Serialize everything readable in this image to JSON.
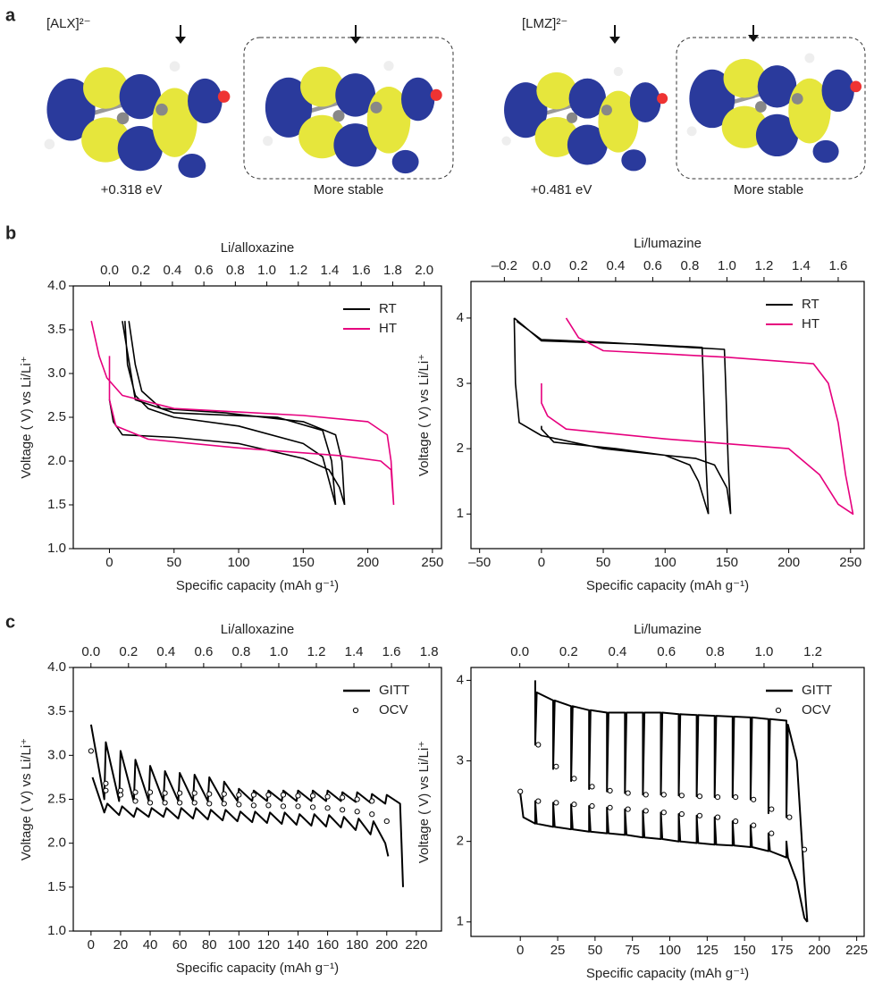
{
  "panel_labels": {
    "a": "a",
    "b": "b",
    "c": "c"
  },
  "panel_a": {
    "molecules": [
      {
        "name": "[ALX]²⁻",
        "energy": "+0.318 eV",
        "stable": "More stable"
      },
      {
        "name": "[LMZ]²⁻",
        "energy": "+0.481 eV",
        "stable": "More stable"
      }
    ]
  },
  "chart_data": [
    {
      "type": "line",
      "x2_label": "Li/alloxazine",
      "x_label": "Specific capacity (mAh g⁻¹)",
      "y_label": "Voltage ( V) vs Li/Li⁺",
      "xlim": [
        -28,
        257
      ],
      "xticks": [
        0,
        50,
        100,
        150,
        200,
        250
      ],
      "x2lim": [
        -0.23,
        2.11
      ],
      "x2ticks": [
        {
          "value": 0,
          "label": "0.0"
        },
        0.2,
        0.4,
        0.6,
        0.8,
        {
          "value": 1,
          "label": "1.0"
        },
        1.2,
        1.4,
        1.6,
        1.8,
        {
          "value": 2,
          "label": "2.0"
        }
      ],
      "ylim": [
        1,
        4
      ],
      "yticks": [
        {
          "value": 1,
          "label": "1.0"
        },
        1.5,
        {
          "value": 2,
          "label": "2.0"
        },
        2.5,
        {
          "value": 3,
          "label": "3.0"
        },
        3.5,
        {
          "value": 4,
          "label": "4.0"
        }
      ],
      "legend": "upper right",
      "series": [
        {
          "name": "RT",
          "color": "#000000",
          "mode": "lines",
          "x": [
            0,
            3,
            10,
            50,
            100,
            150,
            170,
            178,
            182,
            null,
            182,
            180,
            175,
            150,
            90,
            40,
            25,
            20,
            15,
            null,
            12,
            14,
            20,
            30,
            50,
            100,
            150,
            165,
            175,
            null,
            175,
            172,
            165,
            130,
            50,
            20,
            10
          ],
          "values": [
            2.7,
            2.45,
            2.3,
            2.27,
            2.2,
            2.03,
            1.9,
            1.7,
            1.5,
            null,
            1.5,
            2.0,
            2.3,
            2.45,
            2.55,
            2.6,
            2.8,
            3.1,
            3.6,
            null,
            3.6,
            3.1,
            2.75,
            2.6,
            2.5,
            2.4,
            2.2,
            2.05,
            1.5,
            null,
            1.5,
            2.0,
            2.35,
            2.5,
            2.55,
            2.7,
            3.6
          ]
        },
        {
          "name": "HT",
          "color": "#e6007e",
          "mode": "lines",
          "x": [
            -14,
            -8,
            -2,
            10,
            50,
            100,
            150,
            200,
            215,
            218,
            220,
            null,
            220,
            218,
            210,
            180,
            100,
            30,
            5,
            0,
            0
          ],
          "values": [
            3.6,
            3.2,
            2.95,
            2.75,
            2.6,
            2.56,
            2.52,
            2.45,
            2.3,
            2.0,
            1.5,
            null,
            1.5,
            1.9,
            2.0,
            2.06,
            2.15,
            2.25,
            2.4,
            2.7,
            3.2
          ]
        }
      ]
    },
    {
      "type": "line",
      "x2_label": "Li/lumazine",
      "x_label": "Specific capacity (mAh g⁻¹)",
      "y_label": "Voltage ( V) vs Li/Li⁺",
      "xlim": [
        -57,
        261
      ],
      "xticks": [
        {
          "value": -50,
          "label": "–50"
        },
        0,
        50,
        100,
        150,
        200,
        250
      ],
      "x2lim": [
        -0.38,
        1.74
      ],
      "x2ticks": [
        {
          "value": -0.2,
          "label": "–0.2"
        },
        {
          "value": 0,
          "label": "0.0"
        },
        0.2,
        0.4,
        0.6,
        0.8,
        {
          "value": 1,
          "label": "1.0"
        },
        1.2,
        1.4,
        1.6
      ],
      "ylim": [
        0.47,
        4.56
      ],
      "yticks": [
        1,
        2,
        3,
        4
      ],
      "legend": "upper right",
      "series": [
        {
          "name": "RT",
          "color": "#000000",
          "mode": "lines",
          "x": [
            0,
            0,
            10,
            60,
            100,
            125,
            140,
            150,
            153,
            null,
            153,
            151,
            149,
            148,
            120,
            50,
            0,
            -20,
            null,
            -22,
            -21,
            -18,
            0,
            50,
            100,
            120,
            127,
            135,
            null,
            135,
            133,
            131,
            130,
            80,
            0,
            -22
          ],
          "values": [
            2.35,
            2.3,
            2.1,
            2.0,
            1.9,
            1.85,
            1.75,
            1.4,
            1.0,
            null,
            1.0,
            1.8,
            3.0,
            3.52,
            3.55,
            3.63,
            3.67,
            3.95,
            null,
            4.0,
            3.0,
            2.4,
            2.2,
            2.0,
            1.9,
            1.75,
            1.5,
            1.0,
            null,
            1.0,
            1.8,
            3.0,
            3.55,
            3.6,
            3.65,
            4.0
          ]
        },
        {
          "name": "HT",
          "color": "#e6007e",
          "mode": "lines",
          "x": [
            0,
            0,
            5,
            20,
            100,
            200,
            225,
            240,
            252,
            250,
            246,
            240,
            232,
            220,
            150,
            100,
            50,
            30,
            20
          ],
          "values": [
            3.0,
            2.7,
            2.5,
            2.3,
            2.15,
            2.0,
            1.6,
            1.15,
            1.0,
            1.2,
            1.6,
            2.4,
            3.0,
            3.3,
            3.4,
            3.45,
            3.5,
            3.7,
            4.0
          ]
        }
      ]
    },
    {
      "type": "line",
      "x2_label": "Li/alloxazine",
      "x_label": "Specific capacity (mAh g⁻¹)",
      "y_label": "Voltage ( V) vs Li/Li⁺",
      "xlim": [
        -12,
        237
      ],
      "xticks": [
        0,
        20,
        40,
        60,
        80,
        100,
        120,
        140,
        160,
        180,
        200,
        220
      ],
      "x2lim": [
        -0.094,
        1.866
      ],
      "x2ticks": [
        {
          "value": 0,
          "label": "0.0"
        },
        0.2,
        0.4,
        0.6,
        0.8,
        {
          "value": 1,
          "label": "1.0"
        },
        1.2,
        1.4,
        1.6,
        1.8
      ],
      "ylim": [
        1,
        4
      ],
      "yticks": [
        {
          "value": 1,
          "label": "1.0"
        },
        1.5,
        {
          "value": 2,
          "label": "2.0"
        },
        2.5,
        {
          "value": 3,
          "label": "3.0"
        },
        3.5,
        {
          "value": 4,
          "label": "4.0"
        }
      ],
      "legend": "upper right",
      "series": [
        {
          "name": "GITT",
          "color": "#000000",
          "mode": "lines",
          "x": [
            0,
            9,
            10,
            19,
            20,
            29,
            30,
            39,
            40,
            49,
            50,
            59,
            60,
            69,
            70,
            79,
            80,
            89,
            90,
            99,
            100,
            109,
            110,
            119,
            120,
            129,
            130,
            139,
            140,
            149,
            150,
            159,
            160,
            169,
            170,
            179,
            180,
            189,
            190,
            199,
            200,
            209,
            210,
            211,
            null,
            1,
            9,
            11,
            19,
            21,
            29,
            31,
            39,
            41,
            49,
            51,
            59,
            61,
            69,
            71,
            79,
            81,
            89,
            91,
            99,
            101,
            109,
            111,
            119,
            121,
            129,
            131,
            139,
            141,
            149,
            151,
            159,
            161,
            169,
            171,
            179,
            181,
            189,
            191,
            199,
            201
          ],
          "values": [
            3.35,
            2.5,
            3.15,
            2.48,
            3.05,
            2.47,
            2.95,
            2.48,
            2.88,
            2.48,
            2.82,
            2.48,
            2.8,
            2.48,
            2.78,
            2.48,
            2.75,
            2.48,
            2.7,
            2.48,
            2.62,
            2.48,
            2.6,
            2.48,
            2.6,
            2.48,
            2.6,
            2.48,
            2.6,
            2.48,
            2.6,
            2.48,
            2.6,
            2.48,
            2.58,
            2.47,
            2.58,
            2.46,
            2.56,
            2.45,
            2.55,
            2.45,
            2.0,
            1.5,
            null,
            2.75,
            2.35,
            2.45,
            2.32,
            2.42,
            2.3,
            2.4,
            2.3,
            2.4,
            2.3,
            2.4,
            2.28,
            2.4,
            2.28,
            2.4,
            2.27,
            2.38,
            2.26,
            2.38,
            2.25,
            2.36,
            2.24,
            2.36,
            2.23,
            2.35,
            2.22,
            2.35,
            2.21,
            2.33,
            2.2,
            2.33,
            2.19,
            2.32,
            2.18,
            2.3,
            2.15,
            2.28,
            2.1,
            2.25,
            2.0,
            1.85
          ]
        },
        {
          "name": "OCV",
          "color": "#000000",
          "mode": "markers",
          "x": [
            0,
            10,
            20,
            30,
            40,
            50,
            60,
            70,
            80,
            90,
            100,
            110,
            120,
            130,
            140,
            150,
            160,
            170,
            180,
            190,
            10,
            20,
            30,
            40,
            50,
            60,
            70,
            80,
            90,
            100,
            110,
            120,
            130,
            140,
            150,
            160,
            170,
            180,
            190,
            200
          ],
          "values": [
            3.05,
            2.68,
            2.6,
            2.58,
            2.58,
            2.57,
            2.57,
            2.57,
            2.56,
            2.56,
            2.55,
            2.55,
            2.55,
            2.55,
            2.54,
            2.54,
            2.53,
            2.52,
            2.5,
            2.48,
            2.6,
            2.55,
            2.48,
            2.46,
            2.46,
            2.46,
            2.46,
            2.45,
            2.45,
            2.44,
            2.43,
            2.43,
            2.42,
            2.42,
            2.41,
            2.4,
            2.38,
            2.36,
            2.33,
            2.25
          ]
        }
      ]
    },
    {
      "type": "line",
      "x2_label": "Li/lumazine",
      "x_label": "Specific capacity (mAh g⁻¹)",
      "y_label": "Voltage ( V) vs Li/Li⁺",
      "xlim": [
        -33,
        230
      ],
      "xticks": [
        0,
        25,
        50,
        75,
        100,
        125,
        150,
        175,
        200,
        225
      ],
      "x2lim": [
        -0.2,
        1.41
      ],
      "x2ticks": [
        {
          "value": 0,
          "label": "0.0"
        },
        0.2,
        0.4,
        0.6,
        0.8,
        {
          "value": 1,
          "label": "1.0"
        },
        1.2
      ],
      "ylim": [
        0.82,
        4.16
      ],
      "yticks": [
        1,
        2,
        3,
        4
      ],
      "legend": "upper right",
      "series": [
        {
          "name": "GITT",
          "color": "#000000",
          "mode": "lines",
          "x": [
            10,
            10,
            11,
            22,
            22,
            23,
            34,
            34,
            35,
            46,
            46,
            47,
            58,
            58,
            59,
            70,
            70,
            71,
            82,
            82,
            83,
            94,
            94,
            95,
            106,
            106,
            107,
            118,
            118,
            119,
            130,
            130,
            131,
            142,
            142,
            143,
            154,
            154,
            155,
            166,
            166,
            167,
            178,
            178,
            179,
            185,
            190,
            192,
            null,
            0,
            2,
            10,
            10,
            11,
            22,
            22,
            23,
            34,
            34,
            35,
            46,
            46,
            47,
            58,
            58,
            59,
            70,
            70,
            71,
            82,
            82,
            83,
            94,
            94,
            95,
            106,
            106,
            107,
            118,
            118,
            119,
            130,
            130,
            131,
            142,
            142,
            143,
            154,
            154,
            155,
            166,
            166,
            167,
            178,
            178,
            179,
            185,
            190,
            192
          ],
          "values": [
            4.0,
            3.2,
            3.85,
            3.75,
            2.9,
            3.75,
            3.68,
            2.75,
            3.68,
            3.63,
            2.65,
            3.63,
            3.6,
            2.62,
            3.6,
            3.6,
            2.6,
            3.6,
            3.6,
            2.58,
            3.6,
            3.6,
            2.58,
            3.6,
            3.58,
            2.57,
            3.58,
            3.57,
            2.56,
            3.57,
            3.56,
            2.55,
            3.56,
            3.55,
            2.55,
            3.55,
            3.54,
            2.52,
            3.54,
            3.52,
            2.35,
            3.52,
            3.5,
            2.3,
            3.45,
            3.0,
            1.5,
            1.0,
            null,
            2.6,
            2.3,
            2.22,
            2.5,
            2.22,
            2.18,
            2.48,
            2.18,
            2.15,
            2.46,
            2.15,
            2.12,
            2.44,
            2.12,
            2.1,
            2.42,
            2.1,
            2.08,
            2.4,
            2.08,
            2.05,
            2.38,
            2.05,
            2.03,
            2.36,
            2.03,
            2.0,
            2.34,
            2.0,
            1.98,
            2.32,
            1.98,
            1.96,
            2.3,
            1.96,
            1.95,
            2.25,
            1.95,
            1.93,
            2.2,
            1.93,
            1.88,
            2.1,
            1.88,
            1.8,
            2.0,
            1.8,
            1.5,
            1.05,
            1.0
          ]
        },
        {
          "name": "OCV",
          "color": "#000000",
          "mode": "markers",
          "x": [
            12,
            24,
            36,
            48,
            60,
            72,
            84,
            96,
            108,
            120,
            132,
            144,
            156,
            168,
            180,
            0,
            12,
            24,
            36,
            48,
            60,
            72,
            84,
            96,
            108,
            120,
            132,
            144,
            156,
            168,
            190
          ],
          "values": [
            3.2,
            2.93,
            2.78,
            2.68,
            2.63,
            2.6,
            2.58,
            2.58,
            2.57,
            2.56,
            2.55,
            2.55,
            2.52,
            2.4,
            2.3,
            2.62,
            2.5,
            2.48,
            2.46,
            2.44,
            2.42,
            2.4,
            2.38,
            2.36,
            2.34,
            2.32,
            2.3,
            2.25,
            2.2,
            2.1,
            1.9
          ]
        }
      ]
    }
  ]
}
